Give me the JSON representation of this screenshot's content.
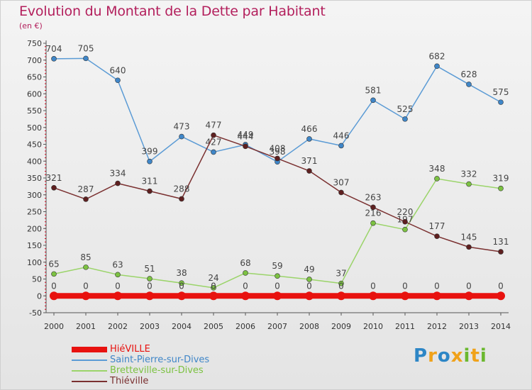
{
  "title": "Evolution du Montant de la Dette par Habitant",
  "subtitle": "(en €)",
  "logo": {
    "text": "Proxiti",
    "letter_colors": [
      "#2d86c6",
      "#f0a21a",
      "#2d86c6",
      "#f0a21a",
      "#6bb82f",
      "#f0a21a",
      "#6bb82f"
    ]
  },
  "chart_data": {
    "type": "line",
    "x": [
      2000,
      2001,
      2002,
      2003,
      2004,
      2005,
      2006,
      2007,
      2008,
      2009,
      2010,
      2011,
      2012,
      2013,
      2014
    ],
    "ylim": [
      -50,
      750
    ],
    "yticks": [
      -50,
      0,
      50,
      100,
      150,
      200,
      250,
      300,
      350,
      400,
      450,
      500,
      550,
      600,
      650,
      700,
      750
    ],
    "grid": false,
    "legend": "bottom-left",
    "series": [
      {
        "name": "Saint-Pierre-sur-Dives",
        "color": "#5b9bd5",
        "marker": "#3f86c8",
        "values": [
          704,
          705,
          640,
          399,
          473,
          427,
          449,
          398,
          466,
          446,
          581,
          525,
          682,
          628,
          575
        ],
        "labels": [
          "704",
          "705",
          "640",
          "399",
          "473",
          "427",
          "449",
          "398",
          "466",
          "446",
          "581",
          "525",
          "682",
          "628",
          "575"
        ]
      },
      {
        "name": "Bretteville-sur-Dives",
        "color": "#9bd46a",
        "marker": "#7cc242",
        "values": [
          65,
          85,
          63,
          51,
          38,
          24,
          68,
          59,
          49,
          37,
          216,
          197,
          348,
          332,
          319
        ],
        "labels": [
          "65",
          "85",
          "63",
          "51",
          "38",
          "24",
          "68",
          "59",
          "49",
          "37",
          "216",
          "197",
          "348",
          "332",
          "319"
        ]
      },
      {
        "name": "Thiéville",
        "color": "#7a3030",
        "marker": "#5e1f1f",
        "values": [
          321,
          287,
          334,
          311,
          288,
          477,
          444,
          408,
          371,
          307,
          263,
          220,
          177,
          145,
          131
        ],
        "labels": [
          "321",
          "287",
          "334",
          "311",
          "288",
          "477",
          "444",
          "408",
          "371",
          "307",
          "263",
          "220",
          "177",
          "145",
          "131"
        ]
      },
      {
        "name": "HiéVILLE",
        "color": "#e8120f",
        "marker": "#e8120f",
        "values": [
          0,
          0,
          0,
          0,
          0,
          0,
          0,
          0,
          0,
          0,
          0,
          0,
          0,
          0,
          0
        ],
        "labels": [
          "0",
          "0",
          "0",
          "0",
          "0",
          "0",
          "0",
          "0",
          "0",
          "0",
          "0",
          "0",
          "0",
          "0",
          "0"
        ]
      }
    ]
  },
  "legend": {
    "items": [
      {
        "label": "HiéVILLE",
        "color": "#e8120f",
        "text_color": "#e8120f"
      },
      {
        "label": "Saint-Pierre-sur-Dives",
        "color": "#5b9bd5",
        "text_color": "#3f86c8"
      },
      {
        "label": "Bretteville-sur-Dives",
        "color": "#9bd46a",
        "text_color": "#7cc242"
      },
      {
        "label": "Thiéville",
        "color": "#7a3030",
        "text_color": "#7a3030"
      }
    ]
  }
}
